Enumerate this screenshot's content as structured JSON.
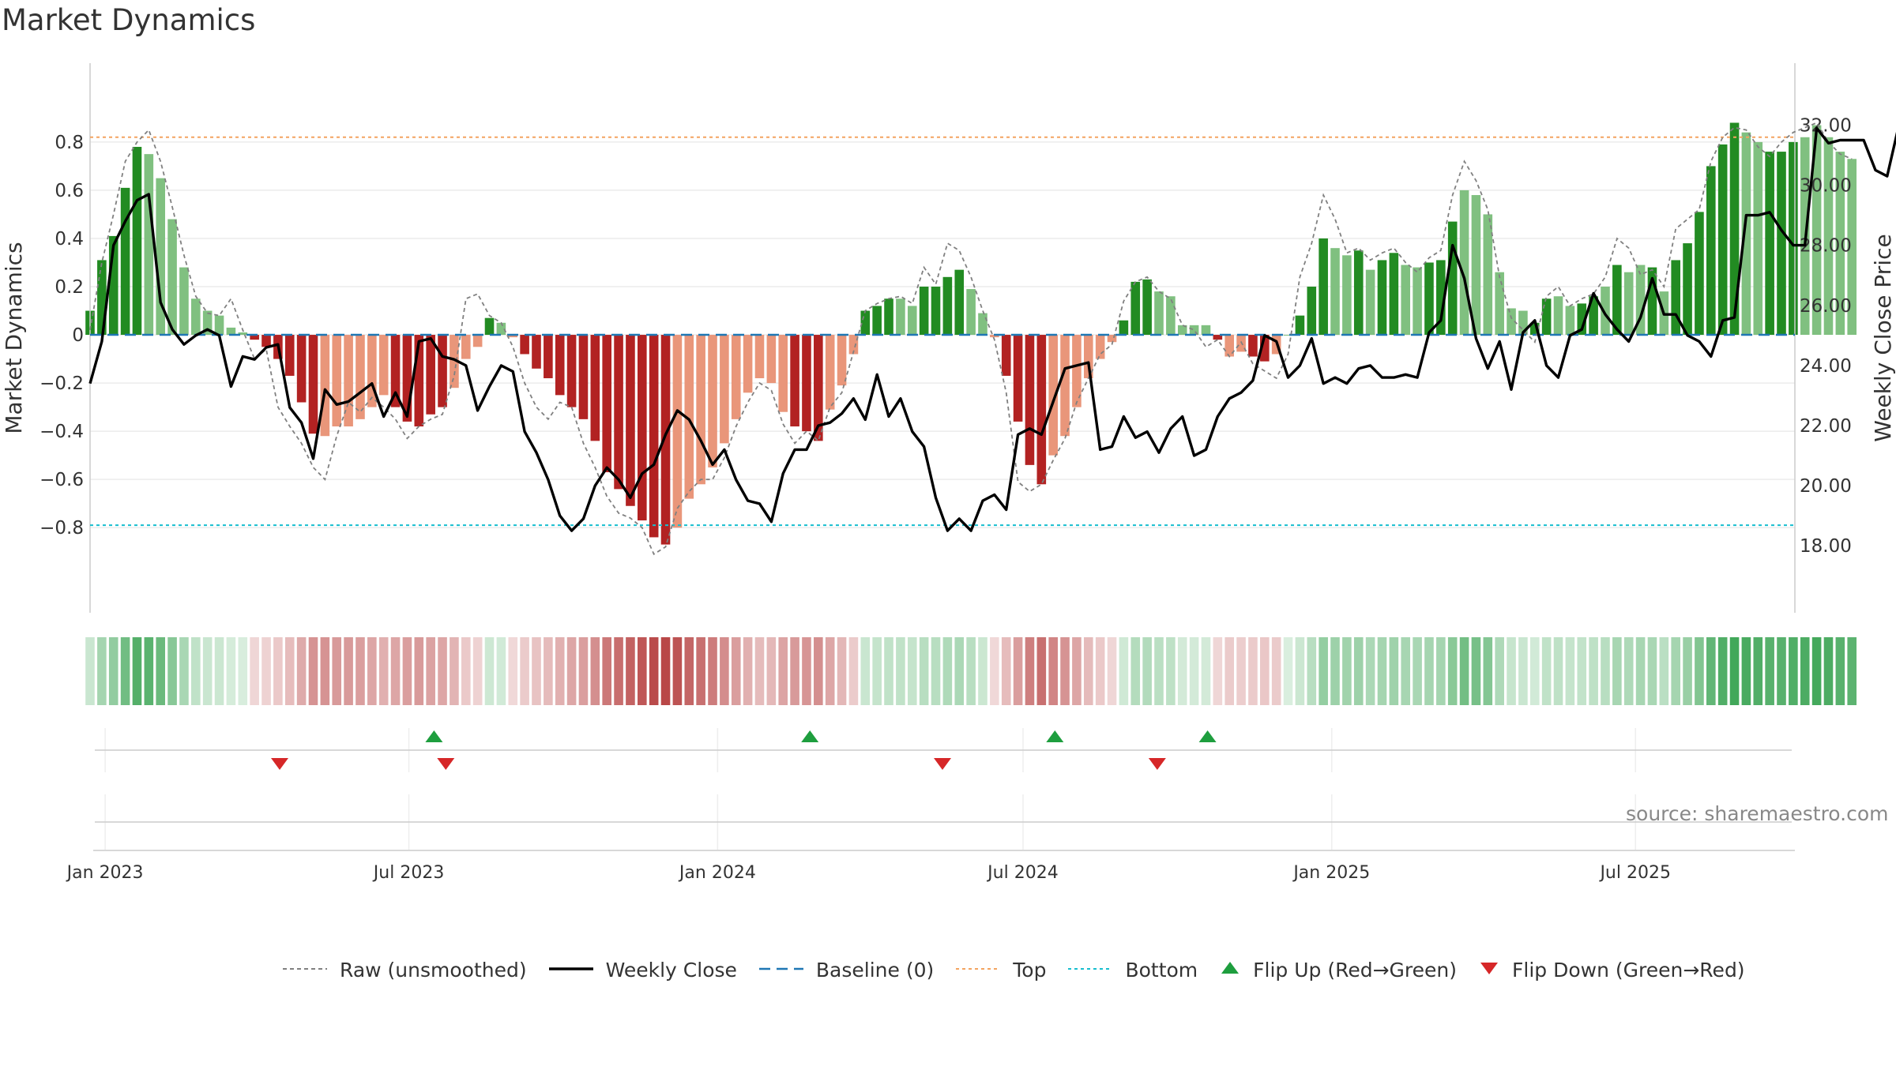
{
  "title": "Market Dynamics",
  "credit": "source: sharemaestro.com",
  "colors": {
    "green_strong": "#228b22",
    "green_light": "#80c080",
    "red_strong": "#b22222",
    "red_light": "#e9967a",
    "baseline": "#1f77b4",
    "top_line": "#f4a460",
    "bottom_line": "#17becf",
    "raw": "#808080",
    "close": "#000000",
    "flip_up": "#1e9e3e",
    "flip_down": "#d62728"
  },
  "legend": [
    {
      "label": "Raw (unsmoothed)",
      "key": "dotted-gray"
    },
    {
      "label": "Weekly Close",
      "key": "solid-black"
    },
    {
      "label": "Baseline (0)",
      "key": "dashed-blue"
    },
    {
      "label": "Top",
      "key": "dotted-orange"
    },
    {
      "label": "Bottom",
      "key": "dotted-cyan"
    },
    {
      "label": "Flip Up (Red→Green)",
      "key": "triangle-up-green"
    },
    {
      "label": "Flip Down (Green→Red)",
      "key": "triangle-down-red"
    }
  ],
  "chart_data": {
    "type": "bar",
    "title": "Market Dynamics",
    "ylabel": "Market Dynamics",
    "y2label": "Weekly Close Price",
    "ylim": [
      -0.95,
      0.97
    ],
    "y2lim": [
      17.4,
      32.8
    ],
    "yticks": [
      "0.8",
      "0.6",
      "0.4",
      "0.2",
      "0",
      "−0.2",
      "−0.4",
      "−0.6",
      "−0.8"
    ],
    "yticks_values": [
      0.8,
      0.6,
      0.4,
      0.2,
      0,
      -0.2,
      -0.4,
      -0.6,
      -0.8
    ],
    "y2ticks": [
      "32.00",
      "30.00",
      "28.00",
      "26.00",
      "24.00",
      "22.00",
      "20.00",
      "18.00"
    ],
    "y2ticks_values": [
      32,
      30,
      28,
      26,
      24,
      22,
      20,
      18
    ],
    "xticks": [
      "Jan 2023",
      "Jul 2023",
      "Jan 2024",
      "Jul 2024",
      "Jan 2025",
      "Jul 2025"
    ],
    "xticks_dates": [
      "2023-01-01",
      "2023-07-01",
      "2024-01-01",
      "2024-07-01",
      "2025-01-01",
      "2025-07-01"
    ],
    "start_date": "2022-12-23",
    "x_end_date": "2025-10-04",
    "top_level": 0.82,
    "bottom_level": -0.79,
    "grid": true,
    "legend_position": "bottom",
    "market_dynamics": [
      0.1,
      0.31,
      0.41,
      0.61,
      0.78,
      0.75,
      0.65,
      0.48,
      0.28,
      0.15,
      0.1,
      0.08,
      0.03,
      0.01,
      -0.02,
      -0.05,
      -0.1,
      -0.17,
      -0.28,
      -0.41,
      -0.42,
      -0.38,
      -0.38,
      -0.35,
      -0.3,
      -0.25,
      -0.3,
      -0.36,
      -0.38,
      -0.33,
      -0.3,
      -0.22,
      -0.1,
      -0.05,
      0.07,
      0.05,
      -0.01,
      -0.08,
      -0.14,
      -0.18,
      -0.25,
      -0.3,
      -0.35,
      -0.44,
      -0.57,
      -0.64,
      -0.71,
      -0.77,
      -0.84,
      -0.87,
      -0.8,
      -0.68,
      -0.62,
      -0.55,
      -0.45,
      -0.35,
      -0.24,
      -0.18,
      -0.2,
      -0.32,
      -0.38,
      -0.4,
      -0.44,
      -0.31,
      -0.21,
      -0.08,
      0.1,
      0.12,
      0.15,
      0.15,
      0.12,
      0.2,
      0.2,
      0.24,
      0.27,
      0.19,
      0.09,
      -0.01,
      -0.17,
      -0.36,
      -0.54,
      -0.62,
      -0.5,
      -0.42,
      -0.3,
      -0.18,
      -0.1,
      -0.03,
      0.06,
      0.22,
      0.23,
      0.18,
      0.16,
      0.04,
      0.04,
      0.04,
      -0.02,
      -0.09,
      -0.07,
      -0.09,
      -0.11,
      -0.08,
      0,
      0.08,
      0.2,
      0.4,
      0.36,
      0.33,
      0.35,
      0.27,
      0.31,
      0.34,
      0.29,
      0.28,
      0.3,
      0.31,
      0.47,
      0.6,
      0.58,
      0.5,
      0.26,
      0.11,
      0.1,
      0.05,
      0.15,
      0.16,
      0.12,
      0.13,
      0.16,
      0.2,
      0.29,
      0.26,
      0.29,
      0.28,
      0.18,
      0.31,
      0.38,
      0.51,
      0.7,
      0.79,
      0.88,
      0.84,
      0.8,
      0.76,
      0.76,
      0.8,
      0.82,
      0.87,
      0.82,
      0.76,
      0.73
    ],
    "bar_tone": [
      "strong",
      "strong",
      "strong",
      "strong",
      "strong",
      "light",
      "light",
      "light",
      "light",
      "light",
      "light",
      "light",
      "light",
      "light",
      "strong",
      "strong",
      "strong",
      "strong",
      "strong",
      "strong",
      "light",
      "light",
      "light",
      "light",
      "light",
      "light",
      "strong",
      "strong",
      "strong",
      "strong",
      "strong",
      "light",
      "light",
      "light",
      "strong",
      "light",
      "light",
      "strong",
      "strong",
      "strong",
      "strong",
      "strong",
      "strong",
      "strong",
      "strong",
      "strong",
      "strong",
      "strong",
      "strong",
      "strong",
      "light",
      "light",
      "light",
      "light",
      "light",
      "light",
      "light",
      "light",
      "light",
      "light",
      "strong",
      "strong",
      "strong",
      "light",
      "light",
      "light",
      "strong",
      "strong",
      "strong",
      "light",
      "light",
      "strong",
      "strong",
      "strong",
      "strong",
      "light",
      "light",
      "light",
      "strong",
      "strong",
      "strong",
      "strong",
      "light",
      "light",
      "light",
      "light",
      "light",
      "light",
      "strong",
      "strong",
      "strong",
      "light",
      "light",
      "light",
      "light",
      "light",
      "strong",
      "light",
      "light",
      "strong",
      "strong",
      "light",
      "light",
      "strong",
      "strong",
      "strong",
      "light",
      "light",
      "strong",
      "light",
      "strong",
      "strong",
      "light",
      "light",
      "strong",
      "strong",
      "strong",
      "light",
      "light",
      "light",
      "light",
      "light",
      "light",
      "strong",
      "strong",
      "light",
      "light",
      "strong",
      "strong",
      "light",
      "strong",
      "light",
      "light",
      "strong",
      "light",
      "strong",
      "strong",
      "strong",
      "strong",
      "strong",
      "strong",
      "light",
      "light",
      "strong",
      "strong",
      "strong",
      "light",
      "light",
      "light",
      "light"
    ],
    "raw": [
      0.02,
      0.3,
      0.5,
      0.72,
      0.8,
      0.85,
      0.72,
      0.53,
      0.33,
      0.16,
      0.09,
      0.08,
      0.15,
      0.02,
      -0.1,
      -0.06,
      -0.3,
      -0.38,
      -0.45,
      -0.55,
      -0.6,
      -0.42,
      -0.28,
      -0.32,
      -0.26,
      -0.3,
      -0.35,
      -0.43,
      -0.38,
      -0.35,
      -0.33,
      -0.17,
      0.15,
      0.17,
      0.08,
      0.05,
      -0.05,
      -0.2,
      -0.3,
      -0.35,
      -0.28,
      -0.3,
      -0.45,
      -0.55,
      -0.67,
      -0.74,
      -0.76,
      -0.8,
      -0.91,
      -0.88,
      -0.72,
      -0.65,
      -0.6,
      -0.6,
      -0.51,
      -0.38,
      -0.28,
      -0.2,
      -0.23,
      -0.37,
      -0.45,
      -0.4,
      -0.44,
      -0.3,
      -0.24,
      -0.07,
      0.1,
      0.13,
      0.15,
      0.16,
      0.13,
      0.28,
      0.21,
      0.38,
      0.35,
      0.24,
      0.1,
      -0.02,
      -0.24,
      -0.61,
      -0.65,
      -0.62,
      -0.52,
      -0.43,
      -0.28,
      -0.18,
      -0.08,
      -0.04,
      0.14,
      0.22,
      0.24,
      0.18,
      0.15,
      0.04,
      0.02,
      -0.05,
      -0.02,
      -0.09,
      -0.03,
      -0.12,
      -0.15,
      -0.18,
      -0.08,
      0.24,
      0.38,
      0.58,
      0.48,
      0.34,
      0.36,
      0.31,
      0.34,
      0.36,
      0.3,
      0.26,
      0.32,
      0.35,
      0.58,
      0.72,
      0.64,
      0.52,
      0.24,
      0.07,
      0.02,
      -0.03,
      0.16,
      0.2,
      0.12,
      0.15,
      0.17,
      0.24,
      0.4,
      0.36,
      0.25,
      0.27,
      0.2,
      0.44,
      0.48,
      0.52,
      0.72,
      0.82,
      0.86,
      0.85,
      0.78,
      0.74,
      0.8,
      0.84,
      0.86,
      0.88,
      0.8,
      0.75,
      0.73
    ],
    "weekly_close": [
      23.4,
      24.8,
      28.0,
      28.8,
      29.5,
      29.7,
      26.1,
      25.2,
      24.7,
      25.0,
      25.2,
      25.0,
      23.3,
      24.3,
      24.2,
      24.6,
      24.7,
      22.6,
      22.1,
      20.9,
      23.2,
      22.7,
      22.8,
      23.1,
      23.4,
      22.3,
      23.1,
      22.3,
      24.8,
      24.9,
      24.3,
      24.2,
      24.0,
      22.5,
      23.3,
      24.0,
      23.8,
      21.8,
      21.1,
      20.2,
      19.0,
      18.5,
      18.9,
      20.0,
      20.6,
      20.2,
      19.6,
      20.4,
      20.7,
      21.7,
      22.5,
      22.2,
      21.5,
      20.7,
      21.2,
      20.2,
      19.5,
      19.4,
      18.8,
      20.4,
      21.2,
      21.2,
      22.0,
      22.1,
      22.4,
      22.9,
      22.2,
      23.7,
      22.3,
      22.9,
      21.8,
      21.3,
      19.6,
      18.5,
      18.9,
      18.5,
      19.5,
      19.7,
      19.2,
      21.7,
      21.9,
      21.7,
      22.8,
      23.9,
      24.0,
      24.1,
      21.2,
      21.3,
      22.3,
      21.6,
      21.8,
      21.1,
      21.9,
      22.3,
      21.0,
      21.2,
      22.3,
      22.9,
      23.1,
      23.5,
      25.0,
      24.8,
      23.6,
      24.0,
      24.9,
      23.4,
      23.6,
      23.4,
      23.9,
      24.0,
      23.6,
      23.6,
      23.7,
      23.6,
      25.1,
      25.5,
      28.0,
      26.9,
      24.9,
      23.9,
      24.8,
      23.2,
      25.1,
      25.5,
      24.0,
      23.6,
      25.0,
      25.2,
      26.4,
      25.7,
      25.2,
      24.8,
      25.6,
      26.9,
      25.7,
      25.7,
      25.0,
      24.8,
      24.3,
      25.5,
      25.6,
      29.0,
      29.0,
      29.1,
      28.5,
      28.0,
      28.0,
      31.9,
      31.4,
      31.5,
      31.5,
      31.5,
      30.5,
      30.3,
      32.0
    ],
    "flip_up_dates": [
      "2023-07-16",
      "2024-02-25",
      "2024-07-20",
      "2024-10-19"
    ],
    "flip_down_dates": [
      "2023-04-15",
      "2023-07-23",
      "2024-05-14",
      "2024-09-19"
    ]
  }
}
